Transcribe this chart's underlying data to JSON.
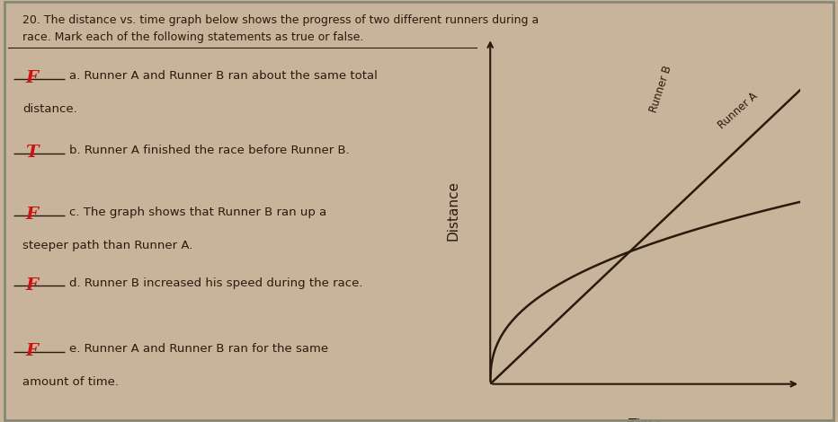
{
  "bg_color": "#c8b49a",
  "line_color": "#2a1a0e",
  "font_color": "#2a1a0e",
  "title_text1": "20. The distance vs. time graph below shows the progress of two different runners during a",
  "title_text2": "race. Mark each of the following statements as true or false.",
  "xlabel": "Time",
  "ylabel": "Distance",
  "runner_a_label": "Runner A",
  "runner_b_label": "Runner B",
  "questions": [
    [
      "a. Runner A and Runner B ran about the same total",
      "distance."
    ],
    [
      "b. Runner A finished the race before Runner B.",
      ""
    ],
    [
      "c. The graph shows that Runner B ran up a",
      "steeper path than Runner A."
    ],
    [
      "d. Runner B increased his speed during the race.",
      ""
    ],
    [
      "e. Runner A and Runner B ran for the same",
      "amount of time."
    ]
  ],
  "answers": [
    "F",
    "T",
    "F",
    "F",
    "F"
  ],
  "answer_color": "#cc1111",
  "border_color": "#888878",
  "inner_border_color": "#555548"
}
